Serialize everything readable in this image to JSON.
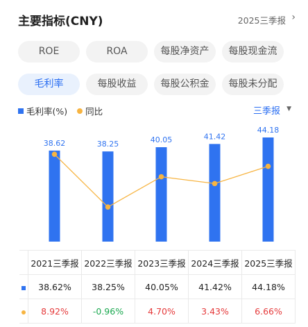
{
  "header": {
    "title": "主要指标(CNY)",
    "period": "2025三季报",
    "arrow": "›"
  },
  "pills_row1": [
    "ROE",
    "ROA",
    "每股净资产",
    "每股现金流"
  ],
  "pills_row2": [
    "毛利率",
    "每股收益",
    "每股公积金",
    "每股未分配"
  ],
  "legend": {
    "bar_label": "毛利率(%)",
    "line_label": "同比"
  },
  "period_select": {
    "value": "三季报",
    "arrow": "▼"
  },
  "colors": {
    "bar": "#2f73f0",
    "line": "#f7b441",
    "positive": "#e5393a",
    "negative": "#1aa84f",
    "accent": "#2a6ef2"
  },
  "chart_data": {
    "type": "bar",
    "categories": [
      "2021三季报",
      "2022三季报",
      "2023三季报",
      "2024三季报",
      "2025三季报"
    ],
    "series": [
      {
        "name": "毛利率(%)",
        "type": "bar",
        "values": [
          38.62,
          38.25,
          40.05,
          41.42,
          44.18
        ]
      },
      {
        "name": "同比",
        "type": "line",
        "values": [
          8.92,
          -0.96,
          4.7,
          3.43,
          6.66
        ]
      }
    ],
    "data_labels": [
      "38.62",
      "38.25",
      "40.05",
      "41.42",
      "44.18"
    ]
  },
  "table": {
    "headers": [
      "2021三季报",
      "2022三季报",
      "2023三季报",
      "2024三季报",
      "2025三季报"
    ],
    "row_values": [
      "38.62%",
      "38.25%",
      "40.05%",
      "41.42%",
      "44.18%"
    ],
    "row_yoy": [
      "8.92%",
      "-0.96%",
      "4.70%",
      "3.43%",
      "6.66%"
    ]
  }
}
